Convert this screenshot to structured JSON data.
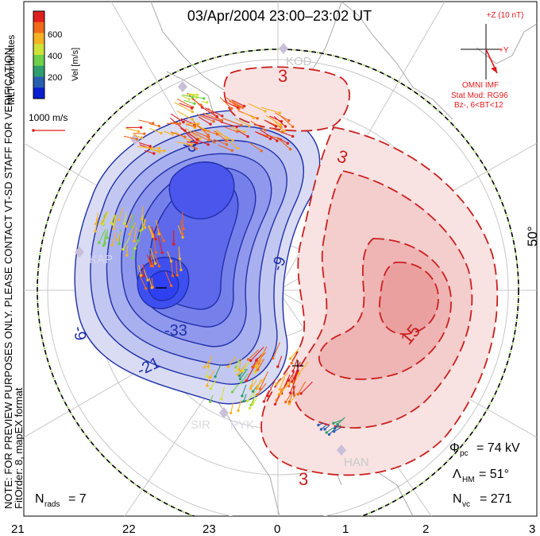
{
  "title": "03/Apr/2004 23:00–23:02 UT",
  "side_note": {
    "line1": "NOTE: FOR PREVIEW PURPOSES ONLY. PLEASE CONTACT VT-SD STAFF FOR VERIFICATION.",
    "line2": "FitOrder: 8, mapEX format"
  },
  "colorbar": {
    "label": "Vel [m/s]",
    "coords_label": "MLT coordinates",
    "ticks": [
      "600",
      "400",
      "200"
    ],
    "colors": [
      "#e01f1f",
      "#f06a1a",
      "#f5b324",
      "#cfe23a",
      "#6fcf4a",
      "#2f9e6e",
      "#2a5fb0",
      "#0b1fd0"
    ]
  },
  "velocity_scale": "1000 m/s",
  "imf": {
    "z_label": "+Z (10 nT)",
    "y_label": "+Y",
    "source": "OMNI IMF",
    "model_line1": "Stat Mod: RG96",
    "model_line2": "Bz-, 6<BT<12"
  },
  "radars": [
    "KOD",
    "KAP",
    "SIR",
    "PYK",
    "HAN"
  ],
  "latitude_label": "50°",
  "contour_labels": {
    "pos": [
      "3",
      "3",
      "15",
      "3"
    ],
    "neg": [
      "-3",
      "-9",
      "-9",
      "-21",
      "-33"
    ]
  },
  "stats": {
    "phi_label": "Φ",
    "phi_sub": "pc",
    "phi_value": "= 74 kV",
    "lambda_label": "Λ",
    "lambda_sub": "HM",
    "lambda_value": "= 51°",
    "nvc_label": "N",
    "nvc_sub": "vc",
    "nvc_value": "= 271",
    "nrads_label": "N",
    "nrads_sub": "rads",
    "nrads_value": "= 7"
  },
  "mlt_axis": [
    "21",
    "22",
    "23",
    "0",
    "1",
    "2",
    "3"
  ],
  "colors": {
    "neg_fill_outer": "#d9dcf3",
    "neg_fill_inner": "#3e4ff0",
    "neg_line": "#1f2fa8",
    "pos_fill_outer": "#f8e2e2",
    "pos_fill_inner": "#efaaaa",
    "pos_line": "#c8201e",
    "annotation_red": "#e31a1a",
    "grid": "#c7c7c7"
  }
}
